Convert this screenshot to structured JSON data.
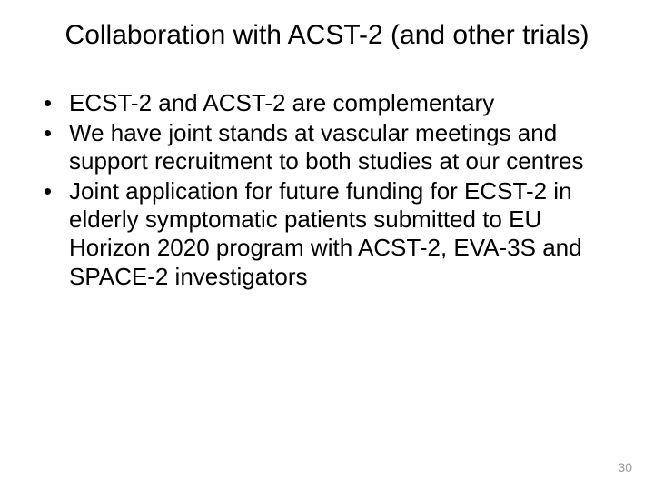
{
  "title": "Collaboration with ACST-2 (and other trials)",
  "bullets": [
    "ECST-2 and ACST-2 are complementary",
    "We have joint stands at vascular meetings and support recruitment to both studies at our centres",
    "Joint application for future funding for ECST-2 in elderly symptomatic patients submitted to EU Horizon 2020 program with ACST-2, EVA-3S and SPACE-2 investigators"
  ],
  "page_number": "30",
  "colors": {
    "background": "#ffffff",
    "text": "#000000",
    "page_number": "#999999"
  },
  "typography": {
    "title_fontsize": 30,
    "body_fontsize": 26,
    "page_number_fontsize": 14,
    "font_family": "Arial"
  }
}
